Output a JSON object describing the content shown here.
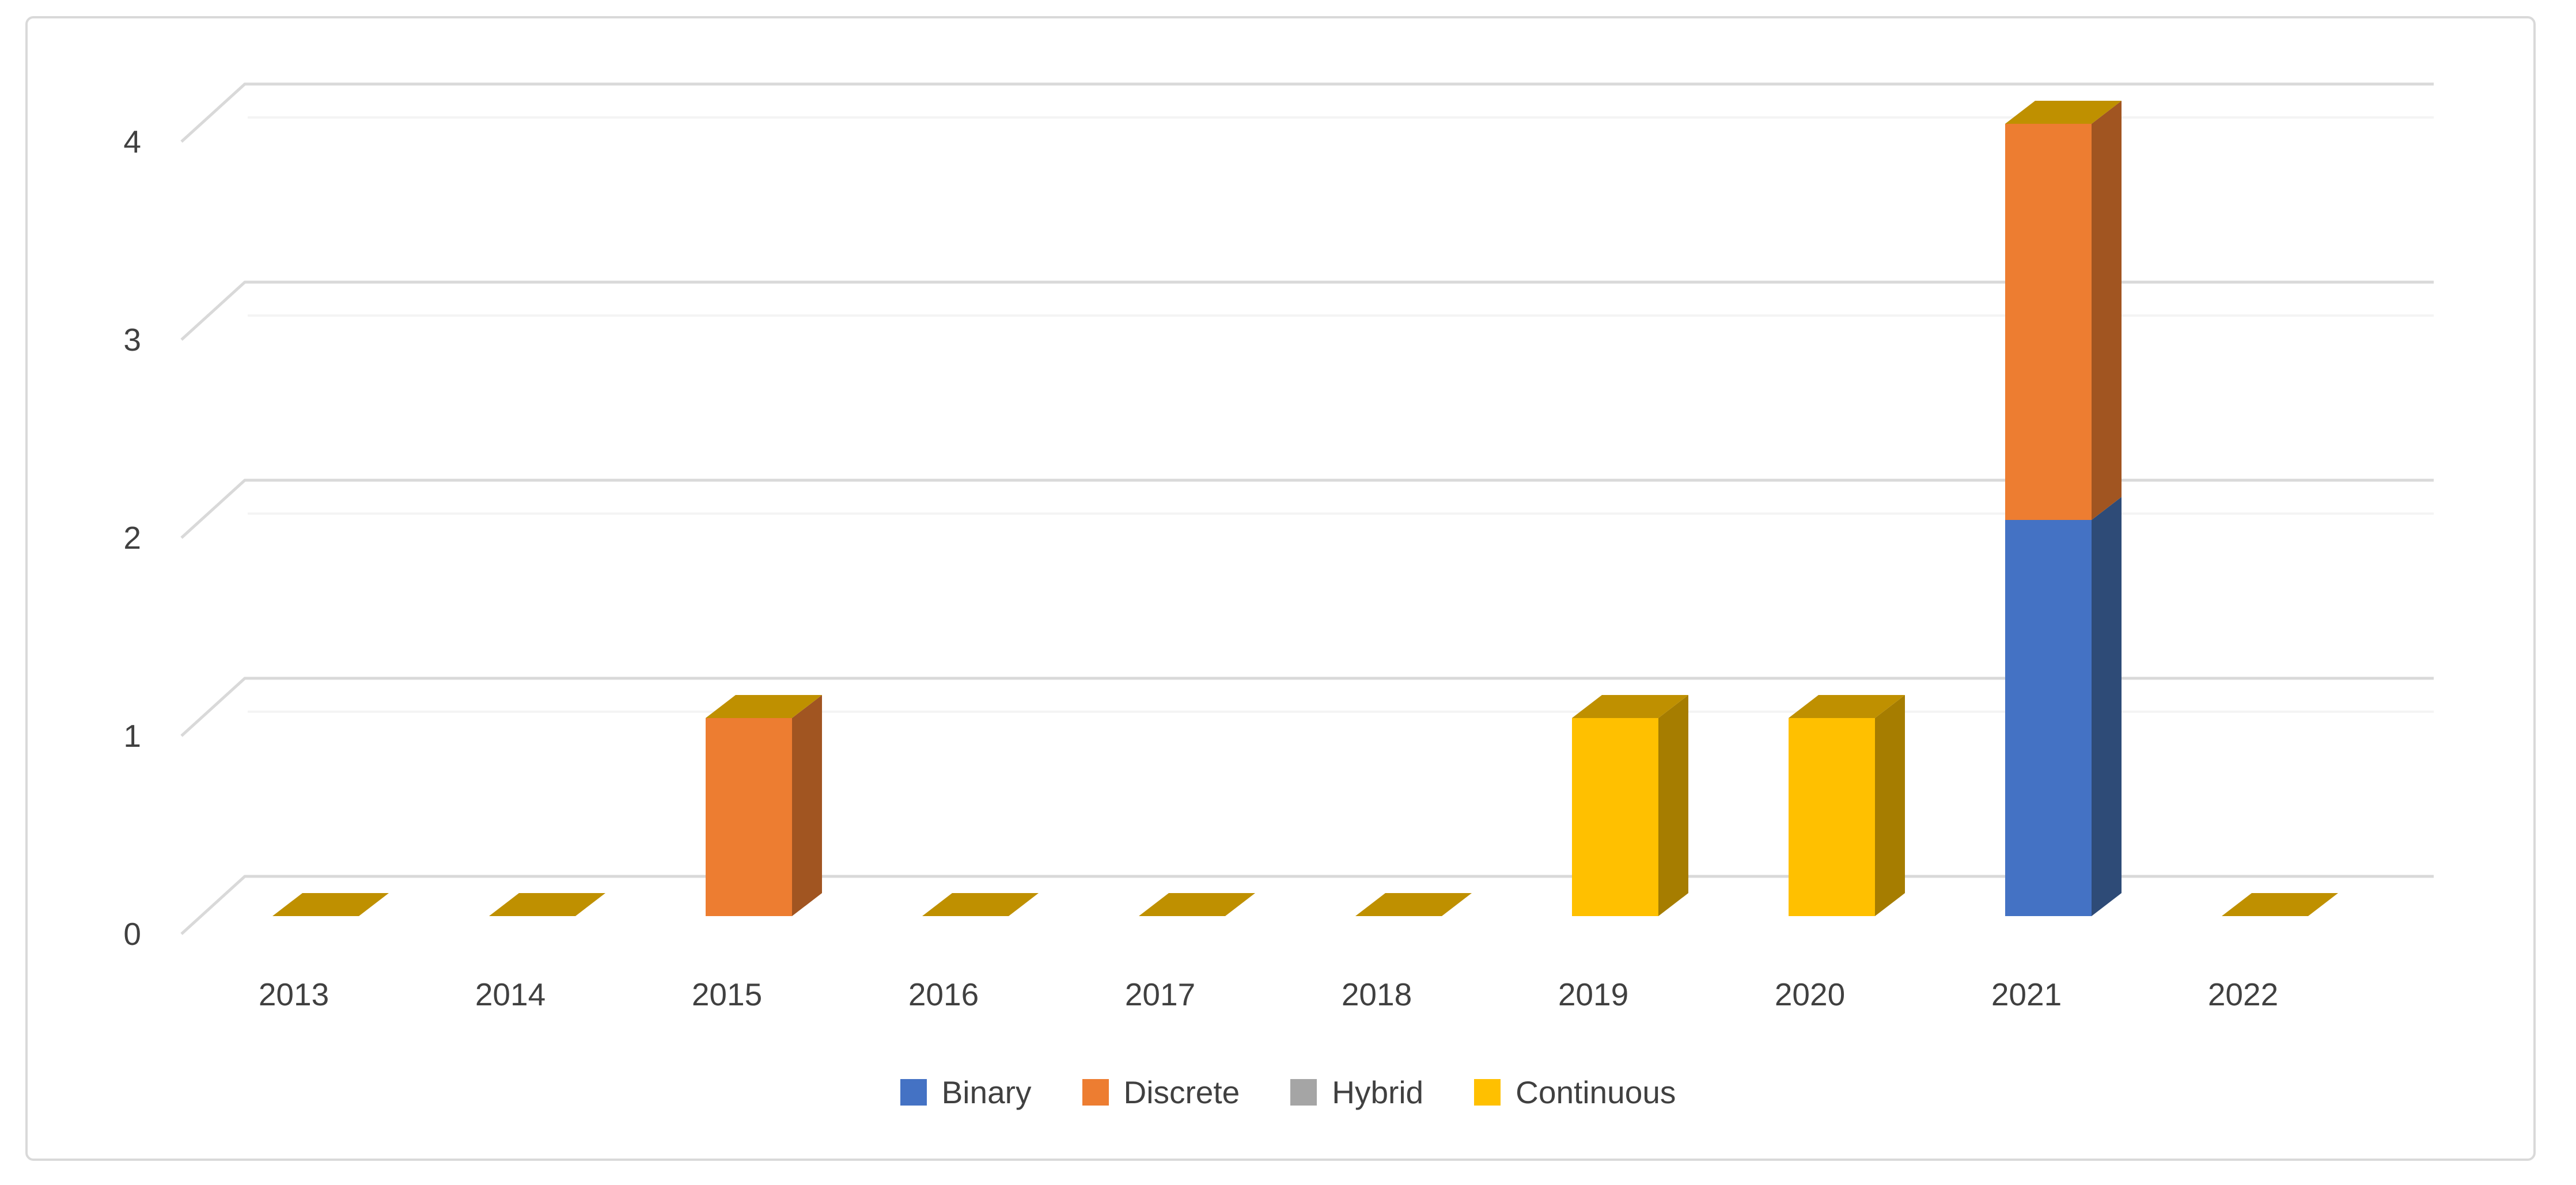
{
  "figure": {
    "background": "#FFFFFF",
    "border_color": "#D9D9D9"
  },
  "chart_data": {
    "type": "bar",
    "variant": "3d-stacked-column",
    "title": "",
    "xlabel": "",
    "ylabel": "",
    "categories": [
      "2013",
      "2014",
      "2015",
      "2016",
      "2017",
      "2018",
      "2019",
      "2020",
      "2021",
      "2022"
    ],
    "series": [
      {
        "name": "Binary",
        "color": "#4472C4",
        "side_color": "#2E4B77",
        "values": [
          0,
          0,
          0,
          0,
          0,
          0,
          0,
          0,
          2,
          0
        ]
      },
      {
        "name": "Discrete",
        "color": "#ED7D31",
        "side_color": "#A15521",
        "values": [
          0,
          0,
          1,
          0,
          0,
          0,
          0,
          0,
          2,
          0
        ]
      },
      {
        "name": "Hybrid",
        "color": "#A5A5A5",
        "side_color": "#7F7F7F",
        "values": [
          0,
          0,
          0,
          0,
          0,
          0,
          0,
          0,
          0,
          0
        ]
      },
      {
        "name": "Continuous",
        "color": "#FFC000",
        "side_color": "#A67D00",
        "values": [
          0,
          0,
          0,
          0,
          0,
          0,
          1,
          1,
          0,
          0
        ]
      }
    ],
    "stack_totals": [
      0,
      0,
      1,
      0,
      0,
      0,
      1,
      1,
      4,
      0
    ],
    "cap_color": "#BF9000",
    "y_ticks": [
      "0",
      "1",
      "2",
      "3",
      "4"
    ],
    "ylim": [
      0,
      4
    ],
    "grid": "horizontal",
    "gridline_color": "#D9D9D9",
    "front_gridline_color": "#F4F4F4",
    "axis_text_color": "#404040",
    "legend": {
      "position": "bottom",
      "items": [
        "Binary",
        "Discrete",
        "Hybrid",
        "Continuous"
      ]
    }
  }
}
